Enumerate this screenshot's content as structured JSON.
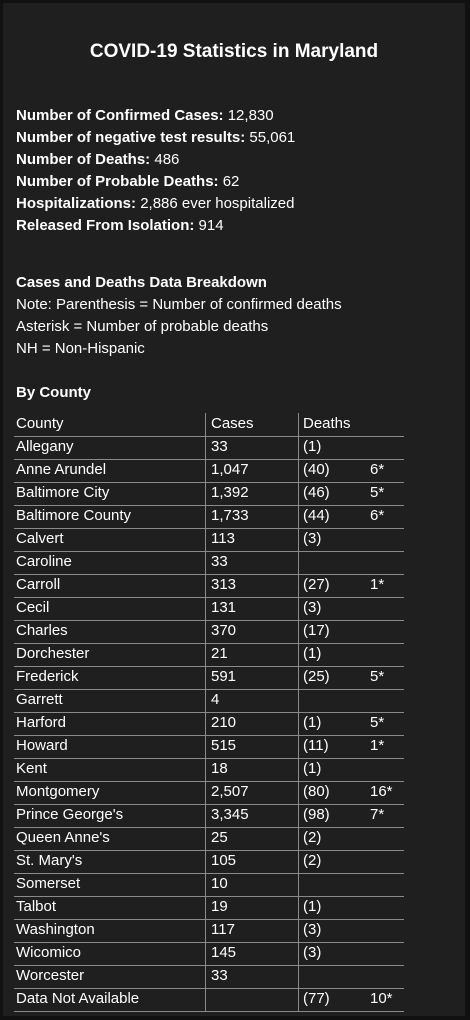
{
  "title": "COVID-19 Statistics in Maryland",
  "stats": [
    {
      "label": "Number of Confirmed Cases:",
      "value": "12,830"
    },
    {
      "label": "Number of negative test results:",
      "value": "55,061"
    },
    {
      "label": "Number of Deaths:",
      "value": "486"
    },
    {
      "label": "Number of Probable Deaths:",
      "value": "62"
    },
    {
      "label": "Hospitalizations:",
      "value": "2,886 ever hospitalized"
    },
    {
      "label": "Released From Isolation:",
      "value": "914"
    }
  ],
  "breakdown": {
    "heading": "Cases and Deaths Data Breakdown",
    "notes": [
      "Note: Parenthesis = Number of confirmed deaths",
      "Asterisk = Number of probable deaths",
      "NH = Non-Hispanic"
    ]
  },
  "table": {
    "heading": "By County",
    "columns": [
      "County",
      "Cases",
      "Deaths"
    ],
    "rows": [
      {
        "county": "Allegany",
        "cases": "33",
        "deaths": "(1)"
      },
      {
        "county": "Anne Arundel",
        "cases": "1,047",
        "deaths": "(40)",
        "probable": "6*"
      },
      {
        "county": "Baltimore City",
        "cases": "1,392",
        "deaths": "(46)",
        "probable": "5*"
      },
      {
        "county": "Baltimore County",
        "cases": "1,733",
        "deaths": "(44)",
        "probable": "6*"
      },
      {
        "county": "Calvert",
        "cases": "113",
        "deaths": "(3)"
      },
      {
        "county": "Caroline",
        "cases": "33"
      },
      {
        "county": "Carroll",
        "cases": "313",
        "deaths": "(27)",
        "probable": "1*"
      },
      {
        "county": "Cecil",
        "cases": "131",
        "deaths": "(3)"
      },
      {
        "county": "Charles",
        "cases": "370",
        "deaths": "(17)"
      },
      {
        "county": "Dorchester",
        "cases": "21",
        "deaths": "(1)"
      },
      {
        "county": "Frederick",
        "cases": "591",
        "deaths": "(25)",
        "probable": "5*"
      },
      {
        "county": "Garrett",
        "cases": "4"
      },
      {
        "county": "Harford",
        "cases": "210",
        "deaths": "(1)",
        "probable": "5*"
      },
      {
        "county": "Howard",
        "cases": "515",
        "deaths": "(11)",
        "probable": "1*"
      },
      {
        "county": "Kent",
        "cases": "18",
        "deaths": "(1)"
      },
      {
        "county": "Montgomery",
        "cases": "2,507",
        "deaths": "(80)",
        "probable": "16*"
      },
      {
        "county": "Prince George's",
        "cases": "3,345",
        "deaths": "(98)",
        "probable": "7*"
      },
      {
        "county": "Queen Anne's",
        "cases": "25",
        "deaths": "(2)"
      },
      {
        "county": "St. Mary's",
        "cases": "105",
        "deaths": "(2)"
      },
      {
        "county": "Somerset",
        "cases": "10"
      },
      {
        "county": "Talbot",
        "cases": "19",
        "deaths": "(1)"
      },
      {
        "county": "Washington",
        "cases": "117",
        "deaths": "(3)"
      },
      {
        "county": "Wicomico",
        "cases": "145",
        "deaths": "(3)"
      },
      {
        "county": "Worcester",
        "cases": "33"
      },
      {
        "county": "Data Not Available",
        "deaths": "(77)",
        "probable": "10*"
      }
    ]
  }
}
